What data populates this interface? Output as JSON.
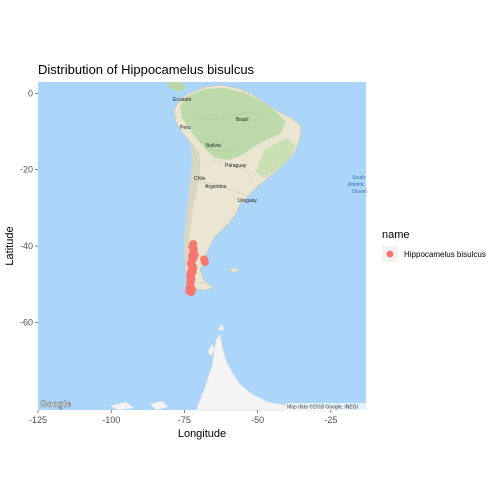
{
  "chart_data": {
    "type": "scatter",
    "title": "Distribution of Hippocamelus bisulcus",
    "xlabel": "Longitude",
    "ylabel": "Latitude",
    "xlim": [
      -125,
      -13
    ],
    "ylim": [
      -83,
      3
    ],
    "x_ticks": [
      -125,
      -100,
      -75,
      -50,
      -25
    ],
    "y_ticks": [
      0,
      -20,
      -40,
      -60
    ],
    "x_tick_labels": [
      "-125",
      "-100",
      "-75",
      "-50",
      "-25"
    ],
    "y_tick_labels": [
      "0",
      "-20",
      "-40",
      "-60"
    ],
    "legend": {
      "title": "name",
      "position": "right",
      "entries": [
        {
          "label": "Hippocamelus bisulcus",
          "color": "#F8766D"
        }
      ]
    },
    "series": [
      {
        "name": "Hippocamelus bisulcus",
        "color": "#F8766D",
        "points": [
          {
            "x": -72.0,
            "y": -39.5
          },
          {
            "x": -72.3,
            "y": -40.2
          },
          {
            "x": -71.8,
            "y": -40.8
          },
          {
            "x": -71.9,
            "y": -41.5
          },
          {
            "x": -72.1,
            "y": -42.0
          },
          {
            "x": -71.5,
            "y": -42.3
          },
          {
            "x": -72.4,
            "y": -42.6
          },
          {
            "x": -71.9,
            "y": -43.1
          },
          {
            "x": -68.3,
            "y": -43.5
          },
          {
            "x": -68.0,
            "y": -44.2
          },
          {
            "x": -72.5,
            "y": -44.0
          },
          {
            "x": -72.8,
            "y": -44.6
          },
          {
            "x": -72.3,
            "y": -45.2
          },
          {
            "x": -72.0,
            "y": -45.8
          },
          {
            "x": -72.6,
            "y": -46.3
          },
          {
            "x": -72.2,
            "y": -46.8
          },
          {
            "x": -72.9,
            "y": -47.2
          },
          {
            "x": -73.1,
            "y": -47.9
          },
          {
            "x": -72.6,
            "y": -48.5
          },
          {
            "x": -72.8,
            "y": -49.1
          },
          {
            "x": -73.0,
            "y": -49.7
          },
          {
            "x": -72.9,
            "y": -50.4
          },
          {
            "x": -73.2,
            "y": -51.0
          },
          {
            "x": -72.4,
            "y": -51.5
          },
          {
            "x": -73.4,
            "y": -51.8
          },
          {
            "x": -72.7,
            "y": -52.1
          }
        ]
      }
    ],
    "map_labels": [
      "Ecuador",
      "Brasil",
      "Peru",
      "Bolivia",
      "Paraguay",
      "Chile",
      "Argentina",
      "Uruguay"
    ],
    "ocean_label": [
      "South",
      "Atlantic",
      "Ocean"
    ],
    "attribution": "Map data ©2018 Google, INEGI",
    "basemap_logo": "Google",
    "colors": {
      "ocean": "#abd6fa",
      "land": "#eae6d2",
      "forest": "#b9d8a6",
      "ice": "#f4f4f4",
      "point": "#F8766D"
    }
  }
}
